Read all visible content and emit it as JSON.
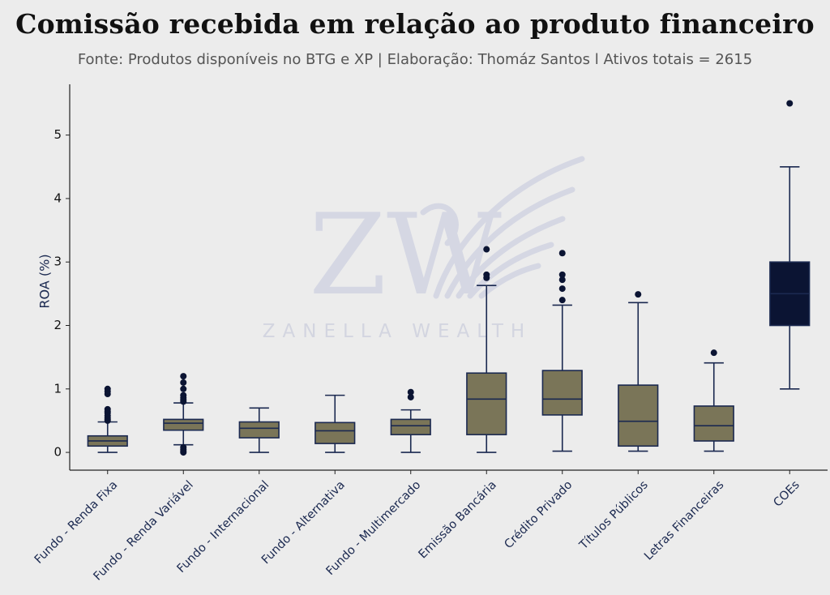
{
  "title": "Comissão recebida em relação ao produto financeiro",
  "subtitle": "Fonte: Produtos disponíveis no BTG e XP | Elaboração: Thomáz Santos l Ativos totais = 2615",
  "watermark": {
    "letters": "ZW",
    "text": "ZANELLA WEALTH"
  },
  "colors": {
    "background": "#ececec",
    "box_fill": "#7a7558",
    "box_highlight": "#0b1433",
    "line": "#1b2950",
    "axis": "#222222"
  },
  "chart_data": {
    "type": "boxplot",
    "ylabel": "ROA (%)",
    "xlabel": "",
    "ylim": [
      -0.28,
      5.8
    ],
    "yticks": [
      0,
      1,
      2,
      3,
      4,
      5
    ],
    "grid": false,
    "categories": [
      "Fundo - Renda Fixa",
      "Fundo - Renda Variável",
      "Fundo - Internacional",
      "Fundo - Alternativa",
      "Fundo - Multimercado",
      "Emissão Bancária",
      "Crédito Privado",
      "Títulos Públicos",
      "Letras Financeiras",
      "COEs"
    ],
    "boxes": [
      {
        "whisker_low": 0.0,
        "q1": 0.1,
        "median": 0.18,
        "q3": 0.26,
        "whisker_high": 0.48,
        "outliers": [
          0.5,
          0.52,
          0.55,
          0.58,
          0.62,
          0.65,
          0.68,
          0.92,
          0.96,
          1.0
        ]
      },
      {
        "whisker_low": 0.12,
        "q1": 0.35,
        "median": 0.46,
        "q3": 0.52,
        "whisker_high": 0.78,
        "outliers": [
          0.0,
          0.02,
          0.05,
          0.08,
          0.8,
          0.83,
          0.86,
          0.9,
          1.0,
          1.1,
          1.2
        ]
      },
      {
        "whisker_low": 0.0,
        "q1": 0.23,
        "median": 0.38,
        "q3": 0.48,
        "whisker_high": 0.7,
        "outliers": []
      },
      {
        "whisker_low": 0.0,
        "q1": 0.14,
        "median": 0.34,
        "q3": 0.47,
        "whisker_high": 0.9,
        "outliers": []
      },
      {
        "whisker_low": 0.0,
        "q1": 0.28,
        "median": 0.42,
        "q3": 0.52,
        "whisker_high": 0.67,
        "outliers": [
          0.87,
          0.95
        ]
      },
      {
        "whisker_low": 0.0,
        "q1": 0.28,
        "median": 0.84,
        "q3": 1.25,
        "whisker_high": 2.63,
        "outliers": [
          2.75,
          2.8,
          3.2
        ]
      },
      {
        "whisker_low": 0.02,
        "q1": 0.59,
        "median": 0.84,
        "q3": 1.29,
        "whisker_high": 2.32,
        "outliers": [
          2.4,
          2.58,
          2.72,
          2.8,
          3.14
        ]
      },
      {
        "whisker_low": 0.02,
        "q1": 0.1,
        "median": 0.49,
        "q3": 1.06,
        "whisker_high": 2.36,
        "outliers": [
          2.49
        ]
      },
      {
        "whisker_low": 0.02,
        "q1": 0.18,
        "median": 0.42,
        "q3": 0.73,
        "whisker_high": 1.41,
        "outliers": [
          1.57
        ]
      },
      {
        "whisker_low": 1.0,
        "q1": 2.0,
        "median": 2.5,
        "q3": 3.0,
        "whisker_high": 4.5,
        "outliers": [
          5.5
        ],
        "highlight": true
      }
    ]
  }
}
